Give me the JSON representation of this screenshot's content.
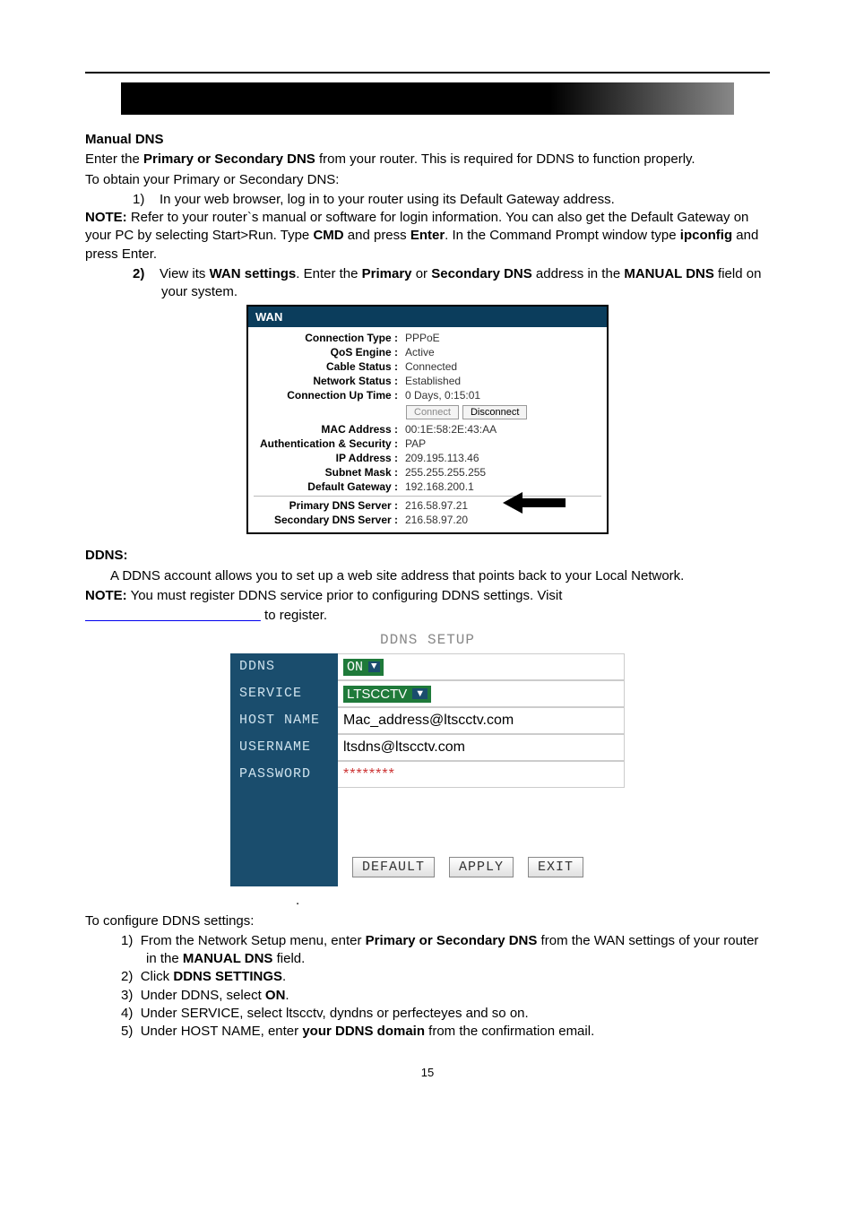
{
  "section1": {
    "heading": "Manual DNS",
    "intro_pre": "Enter the ",
    "intro_bold": "Primary or Secondary DNS",
    "intro_post": " from your router. This is required for DDNS to function properly.",
    "obtain": "To obtain your Primary or Secondary DNS:",
    "step1_num": "1)",
    "step1_text": "In your web browser, log in to your router using its Default Gateway address.",
    "note_label": "NOTE:",
    "note_a": " Refer to your router`s manual or software for login information. You can also get the Default Gateway on your PC by selecting Start>Run. Type ",
    "note_b_cmd": "CMD",
    "note_c": " and press ",
    "note_d_enter": "Enter",
    "note_e": ". In the Command Prompt window type ",
    "note_f_ip": "ipconfig",
    "note_g": " and press Enter.",
    "step2_num": "2)",
    "step2_a": "View its ",
    "step2_b": "WAN settings",
    "step2_c": ". Enter the ",
    "step2_d": "Primary",
    "step2_e": " or ",
    "step2_f": "Secondary DNS",
    "step2_g": " address in the ",
    "step2_h": "MANUAL DNS",
    "step2_i": " field on your system."
  },
  "wan": {
    "header": "WAN",
    "rows": {
      "conn_type_l": "Connection Type :",
      "conn_type_v": "PPPoE",
      "qos_l": "QoS Engine :",
      "qos_v": "Active",
      "cable_l": "Cable Status :",
      "cable_v": "Connected",
      "net_l": "Network Status :",
      "net_v": "Established",
      "uptime_l": "Connection Up Time :",
      "uptime_v": "0 Days, 0:15:01",
      "mac_l": "MAC Address :",
      "mac_v": "00:1E:58:2E:43:AA",
      "auth_l": "Authentication & Security :",
      "auth_v": "PAP",
      "ip_l": "IP Address :",
      "ip_v": "209.195.113.46",
      "subnet_l": "Subnet Mask :",
      "subnet_v": "255.255.255.255",
      "gw_l": "Default Gateway :",
      "gw_v": "192.168.200.1",
      "pdns_l": "Primary DNS Server :",
      "pdns_v": "216.58.97.21",
      "sdns_l": "Secondary DNS Server :",
      "sdns_v": "216.58.97.20"
    },
    "btn_connect": "Connect",
    "btn_disconnect": "Disconnect"
  },
  "ddns_section": {
    "heading": "DDNS:",
    "para": "A DDNS account allows you to set up a web site address that points back to your Local Network.",
    "note_label": "NOTE:",
    "note_text": " You must register DDNS service prior to configuring DDNS settings. Visit ",
    "link_spacer": "                                               ",
    "register": " to register."
  },
  "ddns_panel": {
    "title": "DDNS SETUP",
    "labels": {
      "ddns": "DDNS",
      "service": "SERVICE",
      "host": "HOST NAME",
      "user": "USERNAME",
      "pass": "PASSWORD"
    },
    "vals": {
      "ddns": "ON",
      "service": "LTSCCTV",
      "host": "Mac_address@ltscctv.com",
      "user": "ltsdns@ltscctv.com",
      "pass": "********"
    },
    "buttons": {
      "default": "DEFAULT",
      "apply": "APPLY",
      "exit": "EXIT"
    }
  },
  "config": {
    "heading": "To configure DDNS settings:",
    "i1_n": "1)",
    "i1_a": "From the Network Setup menu, enter ",
    "i1_b": "Primary or Secondary DNS",
    "i1_c": " from the WAN settings of your router in the ",
    "i1_d": "MANUAL DNS",
    "i1_e": " field.",
    "i2_n": "2)",
    "i2_a": "Click ",
    "i2_b": "DDNS SETTINGS",
    "i2_c": ".",
    "i3_n": "3)",
    "i3_a": "Under DDNS, select ",
    "i3_b": "ON",
    "i3_c": ".",
    "i4_n": "4)",
    "i4_a": "Under SERVICE, select ltscctv, dyndns or perfecteyes and so on.",
    "i5_n": "5)",
    "i5_a": "Under HOST NAME, enter ",
    "i5_b": "your DDNS domain",
    "i5_c": " from the confirmation email."
  },
  "pagenum": "15"
}
